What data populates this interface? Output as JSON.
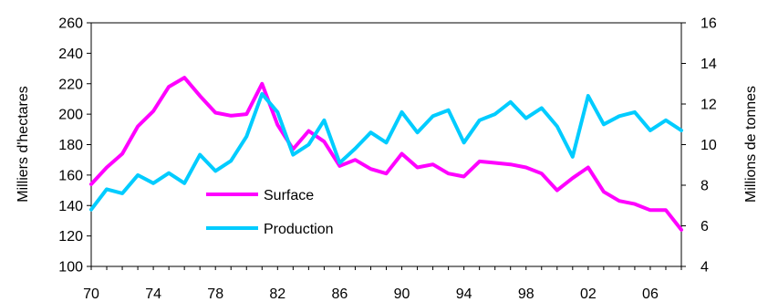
{
  "chart_data": {
    "type": "line",
    "x": [
      1970,
      1971,
      1972,
      1973,
      1974,
      1975,
      1976,
      1977,
      1978,
      1979,
      1980,
      1981,
      1982,
      1983,
      1984,
      1985,
      1986,
      1987,
      1988,
      1989,
      1990,
      1991,
      1992,
      1993,
      1994,
      1995,
      1996,
      1997,
      1998,
      1999,
      2000,
      2001,
      2002,
      2003,
      2004,
      2005,
      2006,
      2007,
      2008
    ],
    "x_tick_labels": [
      "70",
      "74",
      "78",
      "82",
      "86",
      "90",
      "94",
      "98",
      "02",
      "06"
    ],
    "x_tick_values": [
      1970,
      1974,
      1978,
      1982,
      1986,
      1990,
      1994,
      1998,
      2002,
      2006
    ],
    "xlim": [
      1970,
      2008
    ],
    "ylabel": "Milliers d'hectares",
    "ylim": [
      100,
      260
    ],
    "y_ticks": [
      "100",
      "120",
      "140",
      "160",
      "180",
      "200",
      "220",
      "240",
      "260"
    ],
    "y2label": "Millions de tonnes",
    "y2lim": [
      4,
      16
    ],
    "y2_ticks": [
      "4",
      "6",
      "8",
      "10",
      "12",
      "14",
      "16"
    ],
    "grid": false,
    "legend_position": "inside-bottom-left",
    "series": [
      {
        "name": "Surface",
        "axis": "left",
        "color": "#ff00ff",
        "values": [
          154,
          165,
          174,
          192,
          202,
          218,
          224,
          212,
          201,
          199,
          200,
          220,
          193,
          177,
          189,
          182,
          166,
          170,
          164,
          161,
          174,
          165,
          167,
          161,
          159,
          169,
          168,
          167,
          165,
          161,
          150,
          158,
          165,
          149,
          143,
          141,
          137,
          137,
          124
        ]
      },
      {
        "name": "Production",
        "axis": "right",
        "color": "#00ccff",
        "values": [
          6.8,
          7.8,
          7.6,
          8.5,
          8.1,
          8.6,
          8.1,
          9.5,
          8.7,
          9.2,
          10.4,
          12.5,
          11.6,
          9.5,
          10.0,
          11.2,
          9.1,
          9.8,
          10.6,
          10.1,
          11.6,
          10.6,
          11.4,
          11.7,
          10.1,
          11.2,
          11.5,
          12.1,
          11.3,
          11.8,
          10.9,
          9.4,
          12.4,
          11.0,
          11.4,
          11.6,
          10.7,
          11.2,
          10.7
        ]
      }
    ]
  }
}
